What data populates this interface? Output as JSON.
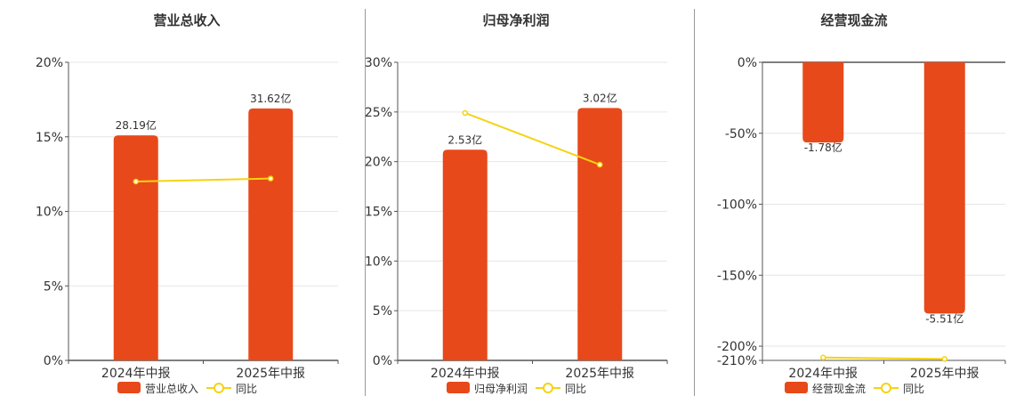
{
  "colors": {
    "bar": "#e8491a",
    "line": "#f5d312",
    "grid": "#e6e6e6",
    "axis": "#555555",
    "divider": "#999999",
    "text": "#333333"
  },
  "legend_line_label": "同比",
  "chart_data": [
    {
      "type": "bar",
      "title": "营业总收入",
      "categories": [
        "2024年中报",
        "2025年中报"
      ],
      "series": [
        {
          "name": "营业总收入",
          "type": "bar",
          "values": [
            15.1,
            16.9
          ],
          "labels": [
            "28.19亿",
            "31.62亿"
          ]
        },
        {
          "name": "同比",
          "type": "line",
          "values": [
            12.0,
            12.2
          ]
        }
      ],
      "yticks": [
        0,
        5,
        10,
        15,
        20
      ],
      "ytick_labels": [
        "0%",
        "5%",
        "10%",
        "15%",
        "20%"
      ],
      "ylim": [
        0,
        20
      ],
      "grid": true,
      "legend": "bottom"
    },
    {
      "type": "bar",
      "title": "归母净利润",
      "categories": [
        "2024年中报",
        "2025年中报"
      ],
      "series": [
        {
          "name": "归母净利润",
          "type": "bar",
          "values": [
            21.2,
            25.4
          ],
          "labels": [
            "2.53亿",
            "3.02亿"
          ]
        },
        {
          "name": "同比",
          "type": "line",
          "values": [
            24.9,
            19.7
          ]
        }
      ],
      "yticks": [
        0,
        5,
        10,
        15,
        20,
        25,
        30
      ],
      "ytick_labels": [
        "0%",
        "5%",
        "10%",
        "15%",
        "20%",
        "25%",
        "30%"
      ],
      "ylim": [
        0,
        30
      ],
      "grid": true,
      "legend": "bottom"
    },
    {
      "type": "bar",
      "title": "经营现金流",
      "categories": [
        "2024年中报",
        "2025年中报"
      ],
      "series": [
        {
          "name": "经营现金流",
          "type": "bar",
          "values": [
            -56.5,
            -177.0
          ],
          "labels": [
            "-1.78亿",
            "-5.51亿"
          ]
        },
        {
          "name": "同比",
          "type": "line",
          "values": [
            -208.0,
            -209.0
          ]
        }
      ],
      "yticks": [
        0,
        -50,
        -100,
        -150,
        -200,
        -210
      ],
      "ytick_labels": [
        "0%",
        "-50%",
        "-100%",
        "-150%",
        "-200%",
        "-210%"
      ],
      "ylim": [
        -210,
        0
      ],
      "grid": true,
      "legend": "bottom"
    }
  ]
}
